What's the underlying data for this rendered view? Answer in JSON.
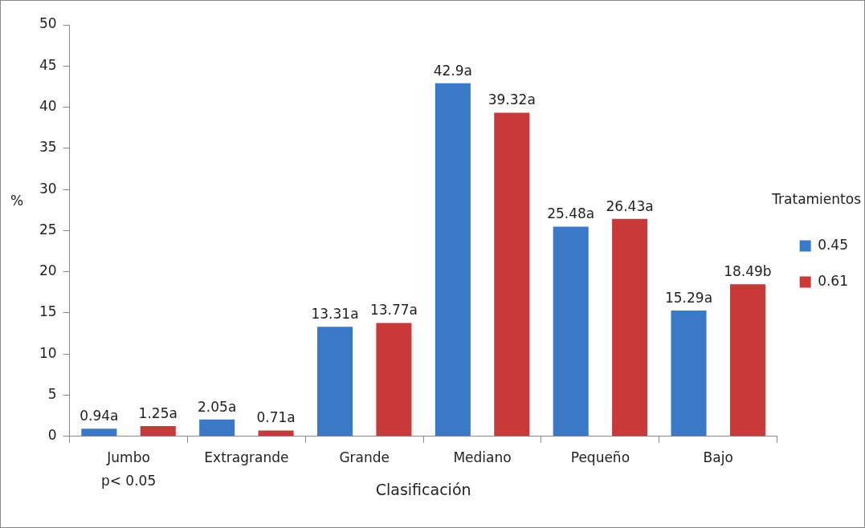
{
  "chart_data": {
    "type": "bar",
    "xlabel": "Clasificación",
    "ylabel": "%",
    "legend_title": "Tratamientos",
    "legend": "right",
    "grid": false,
    "categories": [
      "Jumbo",
      "Extragrande",
      "Grande",
      "Mediano",
      "Pequeño",
      "Bajo"
    ],
    "ylim": [
      0,
      50
    ],
    "yticks": [
      0,
      5,
      10,
      15,
      20,
      25,
      30,
      35,
      40,
      45,
      50
    ],
    "series": [
      {
        "name": "0.45",
        "color": "#3a78c8",
        "values": [
          0.94,
          2.05,
          13.31,
          42.9,
          25.48,
          15.29
        ],
        "value_labels": [
          "0.94a",
          "2.05a",
          "13.31a",
          "42.9a",
          "25.48a",
          "15.29a"
        ]
      },
      {
        "name": "0.61",
        "color": "#c83a3a",
        "values": [
          1.25,
          0.71,
          13.77,
          39.32,
          26.43,
          18.49
        ],
        "value_labels": [
          "1.25a",
          "0.71a",
          "13.77a",
          "39.32a",
          "26.43a",
          "18.49b"
        ]
      }
    ],
    "annotations": [
      "p< 0.05"
    ]
  }
}
